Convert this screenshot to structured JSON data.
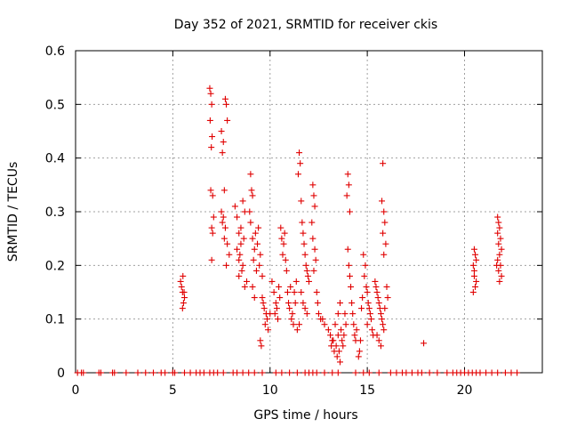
{
  "chart_data": {
    "type": "scatter",
    "title": "Day 352 of 2021, SRMTID for receiver ckis",
    "xlabel": "GPS time / hours",
    "ylabel": "SRMTID / TECUs",
    "xlim": [
      0,
      24
    ],
    "ylim": [
      0,
      0.6
    ],
    "xticks": [
      0,
      5,
      10,
      15,
      20
    ],
    "xtick_labels": [
      "0",
      "5",
      "10",
      "15",
      "20"
    ],
    "yticks": [
      0,
      0.1,
      0.2,
      0.3,
      0.4,
      0.5,
      0.6
    ],
    "ytick_labels": [
      "0",
      "0.1",
      "0.2",
      "0.3",
      "0.4",
      "0.5",
      "0.6"
    ],
    "grid": true,
    "marker": "+",
    "color": "#e00000",
    "series": [
      {
        "name": "SRMTID",
        "points": [
          [
            0.1,
            0
          ],
          [
            0.3,
            0
          ],
          [
            0.4,
            0
          ],
          [
            1.2,
            0
          ],
          [
            1.3,
            0
          ],
          [
            1.9,
            0
          ],
          [
            2.0,
            0
          ],
          [
            2.6,
            0
          ],
          [
            3.2,
            0
          ],
          [
            3.6,
            0
          ],
          [
            4.0,
            0
          ],
          [
            4.4,
            0
          ],
          [
            4.6,
            0
          ],
          [
            5.0,
            0
          ],
          [
            5.1,
            0
          ],
          [
            5.6,
            0
          ],
          [
            5.9,
            0
          ],
          [
            6.2,
            0
          ],
          [
            6.4,
            0
          ],
          [
            6.6,
            0
          ],
          [
            6.9,
            0
          ],
          [
            7.1,
            0
          ],
          [
            7.3,
            0
          ],
          [
            7.6,
            0
          ],
          [
            8.1,
            0
          ],
          [
            8.3,
            0
          ],
          [
            8.6,
            0
          ],
          [
            8.9,
            0
          ],
          [
            9.2,
            0
          ],
          [
            9.6,
            0
          ],
          [
            10.3,
            0
          ],
          [
            10.6,
            0
          ],
          [
            11.0,
            0
          ],
          [
            11.4,
            0
          ],
          [
            11.8,
            0
          ],
          [
            12.0,
            0
          ],
          [
            12.2,
            0
          ],
          [
            12.4,
            0
          ],
          [
            12.8,
            0
          ],
          [
            13.2,
            0
          ],
          [
            13.5,
            0
          ],
          [
            14.4,
            0
          ],
          [
            14.8,
            0
          ],
          [
            15.1,
            0
          ],
          [
            15.6,
            0
          ],
          [
            16.2,
            0
          ],
          [
            16.5,
            0
          ],
          [
            16.8,
            0
          ],
          [
            17.0,
            0
          ],
          [
            17.3,
            0
          ],
          [
            17.6,
            0
          ],
          [
            17.8,
            0
          ],
          [
            18.2,
            0
          ],
          [
            18.6,
            0
          ],
          [
            19.1,
            0
          ],
          [
            19.4,
            0
          ],
          [
            19.6,
            0
          ],
          [
            19.8,
            0
          ],
          [
            20.0,
            0
          ],
          [
            20.2,
            0
          ],
          [
            20.4,
            0
          ],
          [
            20.6,
            0
          ],
          [
            20.8,
            0
          ],
          [
            21.1,
            0
          ],
          [
            21.4,
            0
          ],
          [
            21.7,
            0
          ],
          [
            22.1,
            0
          ],
          [
            22.4,
            0
          ],
          [
            22.7,
            0
          ],
          [
            5.4,
            0.17
          ],
          [
            5.5,
            0.15
          ],
          [
            5.55,
            0.13
          ],
          [
            5.45,
            0.16
          ],
          [
            5.5,
            0.12
          ],
          [
            5.6,
            0.14
          ],
          [
            5.52,
            0.18
          ],
          [
            5.58,
            0.15
          ],
          [
            6.9,
            0.53
          ],
          [
            6.95,
            0.52
          ],
          [
            7.0,
            0.5
          ],
          [
            6.92,
            0.47
          ],
          [
            7.02,
            0.44
          ],
          [
            6.98,
            0.42
          ],
          [
            6.95,
            0.34
          ],
          [
            7.05,
            0.33
          ],
          [
            7.1,
            0.29
          ],
          [
            7.0,
            0.27
          ],
          [
            7.05,
            0.26
          ],
          [
            7.0,
            0.21
          ],
          [
            7.5,
            0.45
          ],
          [
            7.6,
            0.43
          ],
          [
            7.55,
            0.41
          ],
          [
            7.7,
            0.51
          ],
          [
            7.75,
            0.5
          ],
          [
            7.8,
            0.47
          ],
          [
            7.65,
            0.34
          ],
          [
            7.5,
            0.3
          ],
          [
            7.6,
            0.29
          ],
          [
            7.55,
            0.28
          ],
          [
            7.7,
            0.27
          ],
          [
            7.65,
            0.25
          ],
          [
            7.8,
            0.24
          ],
          [
            7.75,
            0.2
          ],
          [
            7.9,
            0.22
          ],
          [
            8.2,
            0.31
          ],
          [
            8.3,
            0.29
          ],
          [
            8.4,
            0.26
          ],
          [
            8.5,
            0.24
          ],
          [
            8.45,
            0.22
          ],
          [
            8.6,
            0.2
          ],
          [
            8.55,
            0.19
          ],
          [
            8.4,
            0.18
          ],
          [
            8.6,
            0.32
          ],
          [
            8.7,
            0.3
          ],
          [
            8.5,
            0.27
          ],
          [
            8.65,
            0.25
          ],
          [
            8.4,
            0.21
          ],
          [
            8.3,
            0.23
          ],
          [
            8.8,
            0.17
          ],
          [
            8.7,
            0.16
          ],
          [
            9.0,
            0.37
          ],
          [
            9.05,
            0.34
          ],
          [
            9.1,
            0.33
          ],
          [
            8.95,
            0.3
          ],
          [
            9.0,
            0.28
          ],
          [
            9.1,
            0.25
          ],
          [
            9.2,
            0.23
          ],
          [
            9.15,
            0.21
          ],
          [
            9.3,
            0.19
          ],
          [
            9.25,
            0.26
          ],
          [
            9.4,
            0.27
          ],
          [
            9.35,
            0.24
          ],
          [
            9.5,
            0.22
          ],
          [
            9.45,
            0.2
          ],
          [
            9.6,
            0.18
          ],
          [
            9.1,
            0.16
          ],
          [
            9.2,
            0.14
          ],
          [
            9.6,
            0.14
          ],
          [
            9.7,
            0.12
          ],
          [
            9.8,
            0.11
          ],
          [
            9.75,
            0.09
          ],
          [
            9.9,
            0.08
          ],
          [
            9.85,
            0.1
          ],
          [
            10.0,
            0.11
          ],
          [
            9.5,
            0.06
          ],
          [
            9.55,
            0.05
          ],
          [
            9.65,
            0.13
          ],
          [
            10.1,
            0.17
          ],
          [
            10.2,
            0.15
          ],
          [
            10.3,
            0.13
          ],
          [
            10.25,
            0.11
          ],
          [
            10.4,
            0.1
          ],
          [
            10.35,
            0.12
          ],
          [
            10.5,
            0.14
          ],
          [
            10.45,
            0.16
          ],
          [
            10.6,
            0.25
          ],
          [
            10.7,
            0.24
          ],
          [
            10.65,
            0.22
          ],
          [
            10.75,
            0.26
          ],
          [
            10.8,
            0.21
          ],
          [
            10.55,
            0.27
          ],
          [
            10.85,
            0.19
          ],
          [
            10.9,
            0.15
          ],
          [
            10.95,
            0.13
          ],
          [
            11.0,
            0.12
          ],
          [
            11.1,
            0.1
          ],
          [
            11.2,
            0.09
          ],
          [
            11.15,
            0.11
          ],
          [
            11.3,
            0.13
          ],
          [
            11.25,
            0.15
          ],
          [
            11.4,
            0.08
          ],
          [
            11.05,
            0.16
          ],
          [
            11.35,
            0.17
          ],
          [
            11.5,
            0.41
          ],
          [
            11.55,
            0.39
          ],
          [
            11.45,
            0.37
          ],
          [
            11.6,
            0.32
          ],
          [
            11.65,
            0.28
          ],
          [
            11.7,
            0.26
          ],
          [
            11.75,
            0.24
          ],
          [
            11.8,
            0.22
          ],
          [
            11.85,
            0.2
          ],
          [
            11.9,
            0.19
          ],
          [
            11.95,
            0.18
          ],
          [
            12.0,
            0.17
          ],
          [
            11.6,
            0.15
          ],
          [
            11.7,
            0.13
          ],
          [
            11.8,
            0.12
          ],
          [
            11.9,
            0.11
          ],
          [
            11.5,
            0.09
          ],
          [
            12.2,
            0.35
          ],
          [
            12.25,
            0.33
          ],
          [
            12.3,
            0.31
          ],
          [
            12.15,
            0.28
          ],
          [
            12.2,
            0.25
          ],
          [
            12.3,
            0.23
          ],
          [
            12.35,
            0.21
          ],
          [
            12.25,
            0.19
          ],
          [
            12.4,
            0.15
          ],
          [
            12.45,
            0.13
          ],
          [
            12.5,
            0.11
          ],
          [
            12.6,
            0.1
          ],
          [
            12.7,
            0.1
          ],
          [
            12.8,
            0.09
          ],
          [
            13.0,
            0.08
          ],
          [
            13.1,
            0.07
          ],
          [
            13.2,
            0.06
          ],
          [
            13.15,
            0.05
          ],
          [
            13.3,
            0.04
          ],
          [
            13.25,
            0.06
          ],
          [
            13.4,
            0.05
          ],
          [
            13.5,
            0.07
          ],
          [
            13.45,
            0.03
          ],
          [
            13.6,
            0.02
          ],
          [
            13.55,
            0.04
          ],
          [
            13.7,
            0.06
          ],
          [
            13.65,
            0.08
          ],
          [
            13.8,
            0.07
          ],
          [
            13.75,
            0.05
          ],
          [
            13.9,
            0.09
          ],
          [
            13.85,
            0.11
          ],
          [
            13.35,
            0.09
          ],
          [
            13.5,
            0.11
          ],
          [
            13.6,
            0.13
          ],
          [
            14.0,
            0.37
          ],
          [
            14.05,
            0.35
          ],
          [
            13.95,
            0.33
          ],
          [
            14.1,
            0.3
          ],
          [
            14.0,
            0.23
          ],
          [
            14.05,
            0.2
          ],
          [
            14.1,
            0.18
          ],
          [
            14.15,
            0.16
          ],
          [
            14.2,
            0.13
          ],
          [
            14.25,
            0.11
          ],
          [
            14.3,
            0.09
          ],
          [
            14.35,
            0.07
          ],
          [
            14.4,
            0.06
          ],
          [
            14.45,
            0.08
          ],
          [
            14.8,
            0.22
          ],
          [
            14.9,
            0.2
          ],
          [
            14.85,
            0.18
          ],
          [
            14.95,
            0.16
          ],
          [
            15.0,
            0.15
          ],
          [
            15.05,
            0.13
          ],
          [
            15.1,
            0.12
          ],
          [
            15.15,
            0.11
          ],
          [
            15.2,
            0.1
          ],
          [
            15.0,
            0.09
          ],
          [
            15.25,
            0.08
          ],
          [
            15.3,
            0.07
          ],
          [
            14.75,
            0.14
          ],
          [
            14.7,
            0.12
          ],
          [
            14.65,
            0.06
          ],
          [
            14.6,
            0.04
          ],
          [
            14.55,
            0.03
          ],
          [
            15.4,
            0.17
          ],
          [
            15.45,
            0.16
          ],
          [
            15.5,
            0.15
          ],
          [
            15.55,
            0.14
          ],
          [
            15.6,
            0.13
          ],
          [
            15.65,
            0.12
          ],
          [
            15.7,
            0.11
          ],
          [
            15.75,
            0.1
          ],
          [
            15.8,
            0.09
          ],
          [
            15.85,
            0.08
          ],
          [
            15.5,
            0.07
          ],
          [
            15.6,
            0.06
          ],
          [
            15.7,
            0.05
          ],
          [
            15.8,
            0.39
          ],
          [
            15.75,
            0.32
          ],
          [
            15.85,
            0.3
          ],
          [
            15.9,
            0.28
          ],
          [
            15.8,
            0.26
          ],
          [
            15.95,
            0.24
          ],
          [
            15.85,
            0.22
          ],
          [
            16.0,
            0.16
          ],
          [
            16.05,
            0.14
          ],
          [
            15.9,
            0.12
          ],
          [
            17.9,
            0.055
          ],
          [
            20.5,
            0.23
          ],
          [
            20.55,
            0.22
          ],
          [
            20.45,
            0.2
          ],
          [
            20.5,
            0.18
          ],
          [
            20.6,
            0.17
          ],
          [
            20.55,
            0.16
          ],
          [
            20.45,
            0.15
          ],
          [
            20.6,
            0.21
          ],
          [
            20.5,
            0.19
          ],
          [
            21.7,
            0.29
          ],
          [
            21.75,
            0.28
          ],
          [
            21.8,
            0.27
          ],
          [
            21.7,
            0.26
          ],
          [
            21.85,
            0.25
          ],
          [
            21.75,
            0.24
          ],
          [
            21.9,
            0.23
          ],
          [
            21.8,
            0.22
          ],
          [
            21.7,
            0.21
          ],
          [
            21.85,
            0.2
          ],
          [
            21.75,
            0.19
          ],
          [
            21.9,
            0.18
          ],
          [
            21.8,
            0.17
          ],
          [
            21.65,
            0.2
          ]
        ]
      }
    ]
  }
}
